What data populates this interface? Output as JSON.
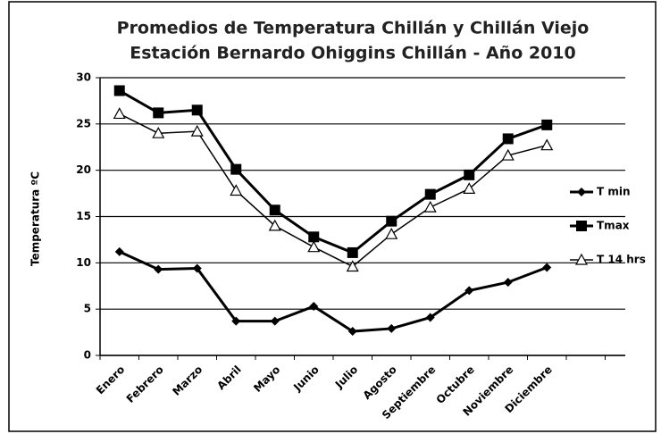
{
  "chart_data": {
    "type": "line",
    "title": [
      "Promedios de  Temperatura Chillán y Chillán Viejo",
      "Estación Bernardo Ohiggins Chillán - Año 2010"
    ],
    "y_label": "Temperatura ºC",
    "categories": [
      "Enero",
      "Febrero",
      "Marzo",
      "Abril",
      "Mayo",
      "Junio",
      "Julio",
      "Agosto",
      "Septiembre",
      "Octubre",
      "Noviembre",
      "Diciembre"
    ],
    "series": [
      {
        "name": "T min",
        "color": "#000000",
        "marker": "diamond",
        "values": [
          11.2,
          9.3,
          9.4,
          3.7,
          3.7,
          5.3,
          2.6,
          2.9,
          4.1,
          7.0,
          7.9,
          9.5
        ]
      },
      {
        "name": "Tmax",
        "color": "#000000",
        "marker": "square",
        "values": [
          28.6,
          26.2,
          26.5,
          20.1,
          15.7,
          12.8,
          11.1,
          14.5,
          17.4,
          19.5,
          23.4,
          24.9
        ]
      },
      {
        "name": "T 14 hrs",
        "color": "#000000",
        "marker": "triangle",
        "values": [
          26.1,
          24.0,
          24.2,
          17.8,
          14.0,
          11.7,
          9.6,
          13.1,
          16.0,
          18.0,
          21.6,
          22.7
        ]
      }
    ],
    "ylim": [
      0,
      30
    ],
    "yticks": [
      0,
      5,
      10,
      15,
      20,
      25,
      30
    ],
    "grid": true,
    "legend": "right"
  }
}
